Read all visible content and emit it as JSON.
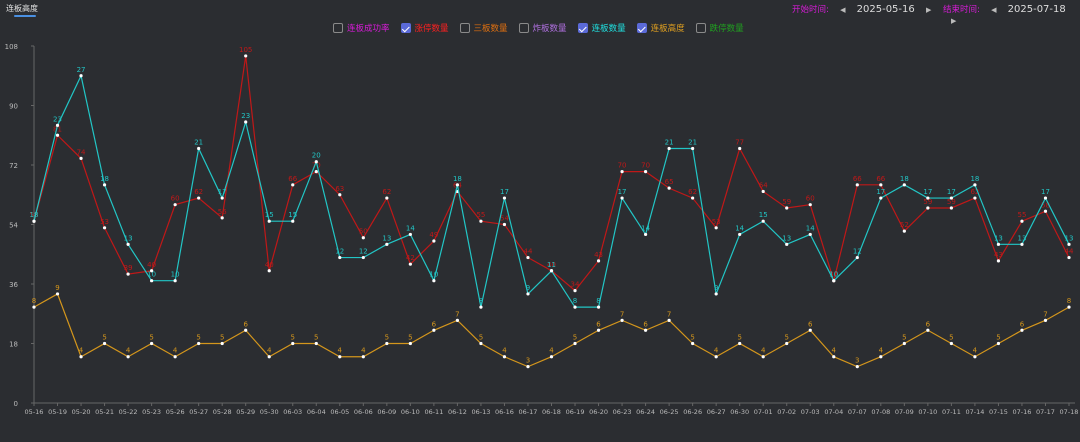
{
  "tab": {
    "label": "连板高度"
  },
  "date_range": {
    "start_label": "开始时间:",
    "start_value": "2025-05-16",
    "end_label": "结束时间:",
    "end_value": "2025-07-18"
  },
  "legend": [
    {
      "label": "连板成功率",
      "checked": false,
      "color": "#d61cd6"
    },
    {
      "label": "涨停数量",
      "checked": true,
      "color": "#ff2020"
    },
    {
      "label": "三板数量",
      "checked": false,
      "color": "#e07010"
    },
    {
      "label": "炸板数量",
      "checked": false,
      "color": "#b070e0"
    },
    {
      "label": "连板数量",
      "checked": true,
      "color": "#20e0e0"
    },
    {
      "label": "连板高度",
      "checked": true,
      "color": "#e0a020"
    },
    {
      "label": "跌停数量",
      "checked": false,
      "color": "#20a020"
    }
  ],
  "chart_data": {
    "type": "line",
    "categories": [
      "05-16",
      "05-19",
      "05-20",
      "05-21",
      "05-22",
      "05-23",
      "05-26",
      "05-27",
      "05-28",
      "05-29",
      "05-30",
      "06-03",
      "06-04",
      "06-05",
      "06-06",
      "06-09",
      "06-10",
      "06-11",
      "06-12",
      "06-13",
      "06-16",
      "06-17",
      "06-18",
      "06-19",
      "06-20",
      "06-23",
      "06-24",
      "06-25",
      "06-26",
      "06-27",
      "06-30",
      "07-01",
      "07-02",
      "07-03",
      "07-04",
      "07-07",
      "07-08",
      "07-09",
      "07-10",
      "07-11",
      "07-14",
      "07-15",
      "07-16",
      "07-17",
      "07-18"
    ],
    "yticks": [
      0,
      18,
      36,
      54,
      72,
      90,
      108
    ],
    "ylim": [
      0,
      108
    ],
    "series": [
      {
        "name": "涨停数量",
        "color": "#c01818",
        "values": [
          55,
          81,
          74,
          53,
          39,
          40,
          60,
          62,
          56,
          105,
          40,
          66,
          70,
          63,
          50,
          62,
          42,
          49,
          64,
          55,
          54,
          44,
          40,
          34,
          43,
          70,
          70,
          65,
          62,
          53,
          77,
          64,
          59,
          60,
          37,
          66,
          66,
          52,
          59,
          59,
          62,
          43,
          55,
          58,
          44
        ]
      },
      {
        "name": "连板数量",
        "color": "#22c6c6",
        "labels": [
          18,
          23,
          27,
          18,
          13,
          10,
          10,
          21,
          17,
          23,
          15,
          15,
          20,
          12,
          12,
          13,
          14,
          10,
          18,
          8,
          17,
          9,
          11,
          8,
          8,
          17,
          14,
          21,
          21,
          9,
          14,
          15,
          13,
          14,
          10,
          12,
          17,
          18,
          17,
          17,
          18,
          13,
          13,
          17,
          13
        ],
        "values": [
          55,
          84,
          99,
          66,
          48,
          37,
          37,
          77,
          62,
          85,
          55,
          55,
          73,
          44,
          44,
          48,
          51,
          37,
          66,
          29,
          62,
          33,
          40,
          29,
          29,
          62,
          51,
          77,
          77,
          33,
          51,
          55,
          48,
          51,
          37,
          44,
          62,
          66,
          62,
          62,
          66,
          48,
          48,
          62,
          48
        ]
      },
      {
        "name": "连板高度",
        "color": "#d4961c",
        "labels": [
          8,
          9,
          4,
          5,
          4,
          5,
          4,
          5,
          5,
          6,
          4,
          5,
          5,
          4,
          4,
          5,
          5,
          6,
          7,
          5,
          4,
          3,
          4,
          5,
          6,
          7,
          6,
          7,
          5,
          4,
          5,
          4,
          5,
          6,
          4,
          3,
          4,
          5,
          6,
          5,
          4,
          5,
          6,
          7,
          8
        ],
        "values": [
          29,
          33,
          14,
          18,
          14,
          18,
          14,
          18,
          18,
          22,
          14,
          18,
          18,
          14,
          14,
          18,
          18,
          22,
          25,
          18,
          14,
          11,
          14,
          18,
          22,
          25,
          22,
          25,
          18,
          14,
          18,
          14,
          18,
          22,
          14,
          11,
          14,
          18,
          22,
          18,
          14,
          18,
          22,
          25,
          29
        ]
      }
    ]
  }
}
